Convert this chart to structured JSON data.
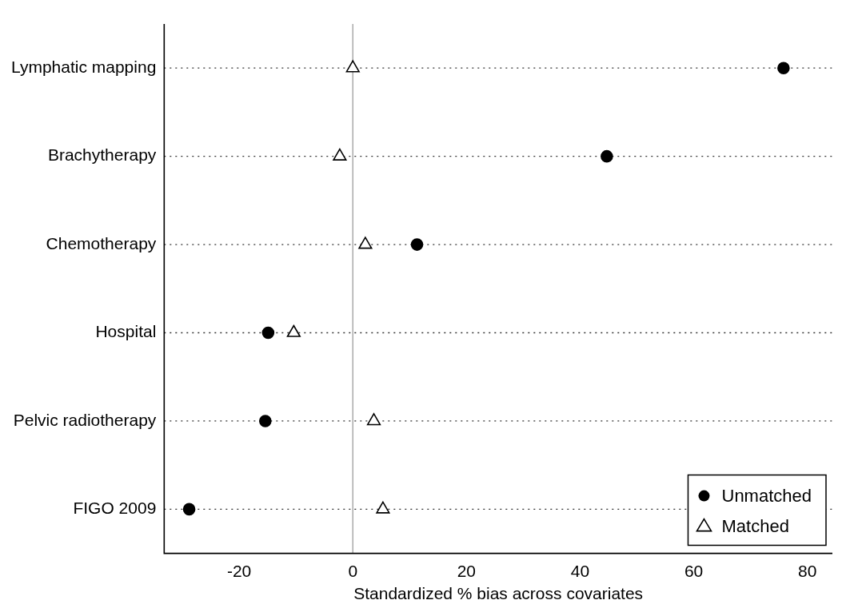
{
  "chart_data": {
    "type": "scatter",
    "xlabel": "Standardized % bias across covariates",
    "categories": [
      "Lymphatic mapping",
      "Brachytherapy",
      "Chemotherapy",
      "Hospital",
      "Pelvic radiotherapy",
      "FIGO 2009"
    ],
    "series": [
      {
        "name": "Unmatched",
        "color": "#000000",
        "marker": "circle",
        "values": [
          75.8,
          44.7,
          11.3,
          -14.9,
          -15.4,
          -28.8
        ]
      },
      {
        "name": "Matched",
        "color": "#000000",
        "marker": "triangle",
        "values": [
          0,
          -2.3,
          2.2,
          -10.4,
          3.7,
          5.3
        ]
      }
    ],
    "xlim": [
      -33.2,
      84.4
    ],
    "xticks": [
      -20,
      0,
      20,
      40,
      60,
      80
    ],
    "ref_lines": [
      {
        "axis": "x",
        "value": 0,
        "color": "#aaaaaa"
      }
    ],
    "grid": "y",
    "legend": "bottom right",
    "orientation": "horizontal"
  }
}
